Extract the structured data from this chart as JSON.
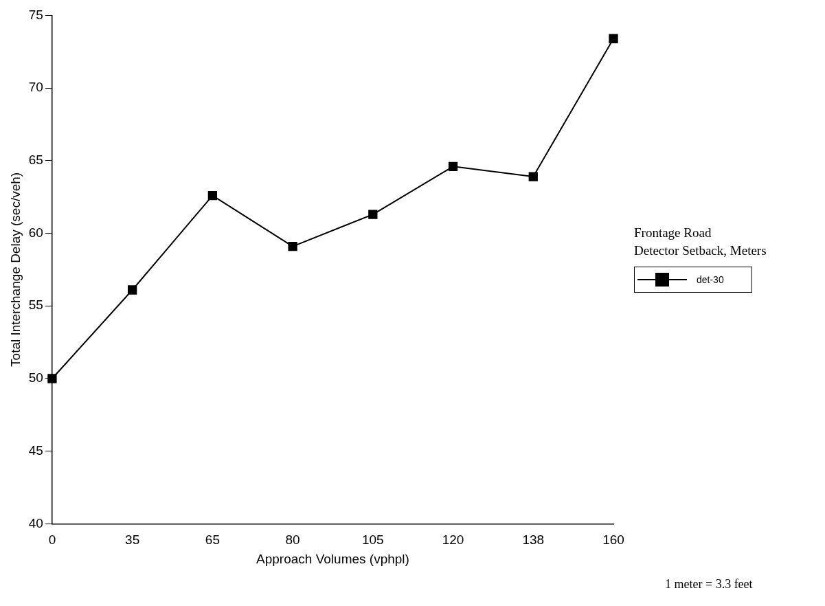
{
  "chart_data": {
    "type": "line",
    "xlabel": "Approach Volumes (vphpl)",
    "ylabel": "Total Interchange Delay (sec/veh)",
    "legend_title": "Frontage Road\nDetector Setback, Meters",
    "categories": [
      "0",
      "35",
      "65",
      "80",
      "105",
      "120",
      "138",
      "160"
    ],
    "series": [
      {
        "name": "det-30",
        "color": "#000000",
        "values": [
          50.0,
          56.1,
          62.6,
          59.1,
          61.3,
          64.6,
          63.9,
          73.4
        ]
      }
    ],
    "ylim": [
      40,
      75
    ],
    "yticks": [
      40,
      45,
      50,
      55,
      60,
      65,
      70,
      75
    ],
    "grid": false,
    "legend": "right",
    "marker": "square",
    "line_style": "solid",
    "annotations": [
      "1 meter = 3.3 feet"
    ]
  }
}
